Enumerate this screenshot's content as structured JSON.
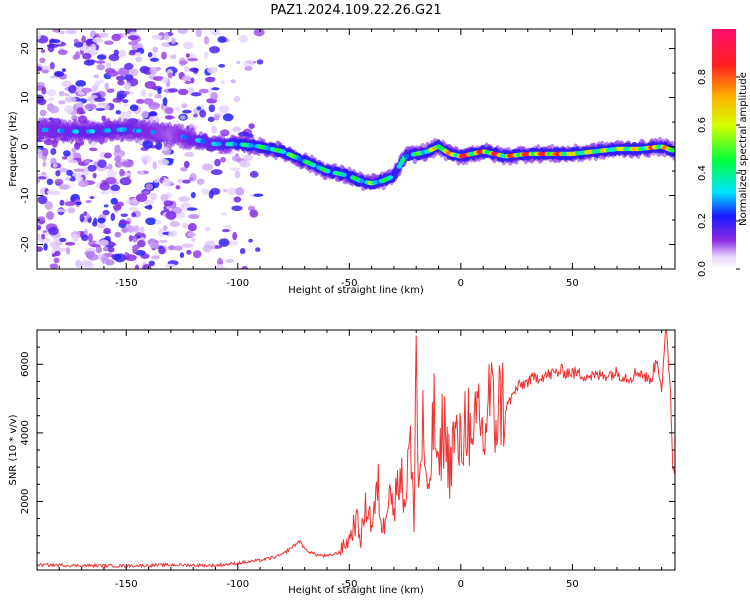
{
  "figure": {
    "title": "PAZ1.2024.109.22.26.G21"
  },
  "chart_data": [
    {
      "type": "heatmap",
      "title": "PAZ1.2024.109.22.26.G21",
      "xlabel": "Height of straight line (km)",
      "ylabel": "Frequency (Hz)",
      "xlim": [
        -190,
        96
      ],
      "ylim": [
        -25,
        24
      ],
      "xticks": [
        -150,
        -100,
        -50,
        0,
        50
      ],
      "yticks": [
        -20,
        -10,
        0,
        10,
        20
      ],
      "colorbar": {
        "label": "Normalized spectral amplitude",
        "range": [
          0,
          1
        ],
        "ticks": [
          "0.0",
          "0.2",
          "0.4",
          "0.6",
          "0.8"
        ],
        "colormap": "rainbow (white → purple → blue → cyan → green → yellow → orange → red → pink)"
      },
      "ridge": {
        "description": "dominant frequency trace",
        "x": [
          -190,
          -170,
          -150,
          -130,
          -120,
          -110,
          -100,
          -90,
          -80,
          -70,
          -60,
          -50,
          -45,
          -40,
          -35,
          -30,
          -25,
          -20,
          -15,
          -10,
          -5,
          0,
          10,
          20,
          30,
          40,
          50,
          60,
          70,
          80,
          90,
          96
        ],
        "y": [
          3.5,
          3,
          3.5,
          2.5,
          1.5,
          0.5,
          0.5,
          0,
          -1,
          -3,
          -5,
          -6,
          -7,
          -7.5,
          -7,
          -6,
          -2,
          -1.5,
          -1,
          0,
          -1.5,
          -2,
          -1,
          -2,
          -1.5,
          -1.5,
          -1.5,
          -1,
          -0.5,
          -0.5,
          0,
          -1
        ],
        "amplitude": [
          0.25,
          0.3,
          0.3,
          0.2,
          0.3,
          0.3,
          0.4,
          0.45,
          0.5,
          0.5,
          0.45,
          0.4,
          0.45,
          0.5,
          0.45,
          0.4,
          0.35,
          0.45,
          0.6,
          0.7,
          0.85,
          0.9,
          0.9,
          0.85,
          0.9,
          0.95,
          0.7,
          0.6,
          0.65,
          0.75,
          0.85,
          0.6
        ]
      }
    },
    {
      "type": "line",
      "xlabel": "Height of straight line (km)",
      "ylabel": "SNR (10 * v/v)",
      "xlim": [
        -190,
        96
      ],
      "ylim": [
        0,
        7000
      ],
      "xticks": [
        -150,
        -100,
        -50,
        0,
        50
      ],
      "yticks": [
        2000,
        4000,
        6000
      ],
      "color": "#ee3333",
      "series": [
        {
          "x": [
            -190,
            -170,
            -150,
            -130,
            -110,
            -100,
            -90,
            -85,
            -80,
            -75,
            -72,
            -70,
            -65,
            -60,
            -55,
            -50,
            -47,
            -45,
            -42,
            -40,
            -37,
            -35,
            -32,
            -30,
            -28,
            -25,
            -23,
            -21,
            -20,
            -19,
            -17,
            -15,
            -12,
            -10,
            -8,
            -5,
            -3,
            0,
            3,
            5,
            8,
            10,
            13,
            15,
            18,
            20,
            25,
            30,
            35,
            40,
            45,
            50,
            55,
            60,
            65,
            70,
            75,
            80,
            85,
            88,
            90,
            92,
            94,
            95,
            96
          ],
          "y": [
            150,
            130,
            120,
            150,
            130,
            200,
            280,
            350,
            450,
            700,
            850,
            600,
            450,
            400,
            500,
            900,
            1500,
            900,
            2000,
            1300,
            2400,
            1000,
            2800,
            1500,
            3100,
            2000,
            3800,
            1500,
            6800,
            2200,
            4200,
            1800,
            4500,
            2600,
            4400,
            3000,
            3900,
            3500,
            4800,
            3000,
            5000,
            3600,
            5200,
            4300,
            5000,
            4700,
            5300,
            5500,
            5650,
            5700,
            5800,
            5750,
            5700,
            5650,
            5700,
            5750,
            5600,
            5800,
            5500,
            6200,
            5300,
            7000,
            5200,
            3000,
            2900
          ]
        }
      ]
    }
  ]
}
